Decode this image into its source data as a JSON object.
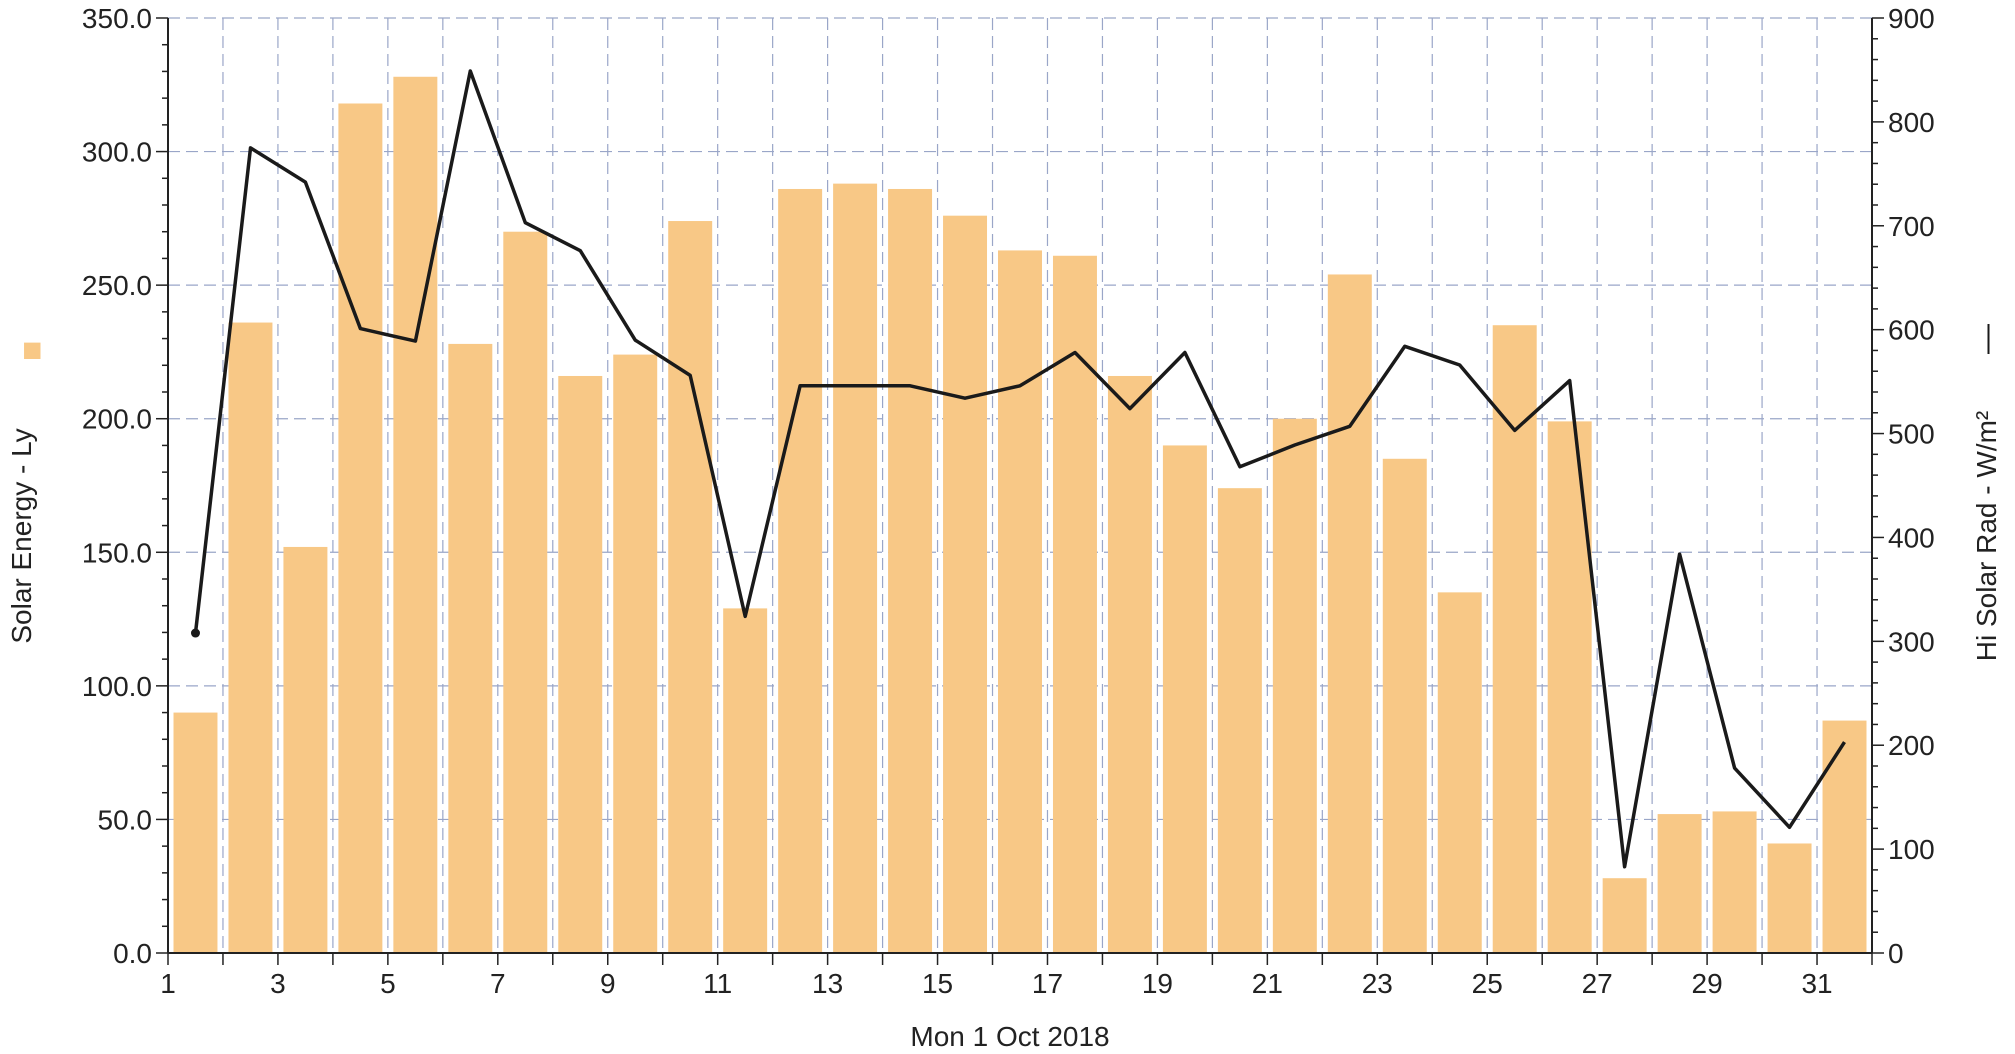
{
  "chart_data": {
    "type": "bar",
    "xlabel": "Mon 1 Oct 2018",
    "x": [
      1,
      2,
      3,
      4,
      5,
      6,
      7,
      8,
      9,
      10,
      11,
      12,
      13,
      14,
      15,
      16,
      17,
      18,
      19,
      20,
      21,
      22,
      23,
      24,
      25,
      26,
      27,
      28,
      29,
      30,
      31
    ],
    "x_tick_labels": [
      "1",
      "3",
      "5",
      "7",
      "9",
      "11",
      "13",
      "15",
      "17",
      "19",
      "21",
      "23",
      "25",
      "27",
      "29",
      "31"
    ],
    "x_tick_values": [
      1,
      3,
      5,
      7,
      9,
      11,
      13,
      15,
      17,
      19,
      21,
      23,
      25,
      27,
      29,
      31
    ],
    "xlim": [
      1,
      32
    ],
    "grid": true,
    "series": [
      {
        "name": "Solar Energy - Ly",
        "type": "bar",
        "axis": "left",
        "color": "#F8C886",
        "values": [
          90,
          236,
          152,
          318,
          328,
          228,
          270,
          216,
          224,
          274,
          129,
          286,
          288,
          286,
          276,
          263,
          261,
          216,
          190,
          174,
          200,
          254,
          185,
          135,
          235,
          199,
          28,
          52,
          53,
          41,
          87
        ]
      },
      {
        "name": "Hi Solar Rad - W/m²",
        "type": "line",
        "axis": "right",
        "color": "#1a1a1a",
        "values": [
          308,
          775,
          742,
          601,
          589,
          849,
          703,
          676,
          590,
          556,
          324,
          546,
          546,
          546,
          534,
          546,
          578,
          524,
          578,
          468,
          489,
          507,
          584,
          566,
          503,
          551,
          83,
          384,
          178,
          121,
          203
        ]
      }
    ],
    "y_left": {
      "label": "Solar Energy - Ly",
      "ylim": [
        0,
        350
      ],
      "ticks": [
        "0.0",
        "50.0",
        "100.0",
        "150.0",
        "200.0",
        "250.0",
        "300.0",
        "350.0"
      ]
    },
    "y_right": {
      "label": "Hi Solar Rad - W/m²",
      "ylim": [
        0,
        900
      ],
      "ticks": [
        "0",
        "100",
        "200",
        "300",
        "400",
        "500",
        "600",
        "700",
        "800",
        "900"
      ]
    },
    "legend_left_symbol": "■",
    "legend_right_symbol": "—"
  }
}
